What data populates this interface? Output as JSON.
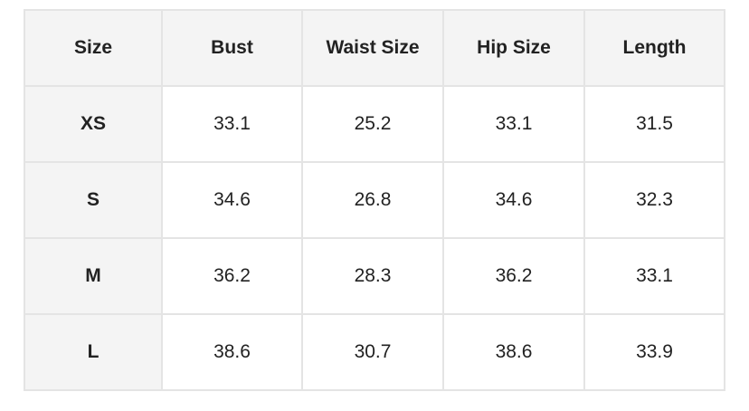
{
  "table": {
    "headers": [
      "Size",
      "Bust",
      "Waist Size",
      "Hip Size",
      "Length"
    ],
    "rows": [
      [
        "XS",
        "33.1",
        "25.2",
        "33.1",
        "31.5"
      ],
      [
        "S",
        "34.6",
        "26.8",
        "34.6",
        "32.3"
      ],
      [
        "M",
        "36.2",
        "28.3",
        "36.2",
        "33.1"
      ],
      [
        "L",
        "38.6",
        "30.7",
        "38.6",
        "33.9"
      ]
    ]
  },
  "colors": {
    "header_bg": "#f4f4f4",
    "border": "#e4e4e4",
    "text": "#222222"
  }
}
